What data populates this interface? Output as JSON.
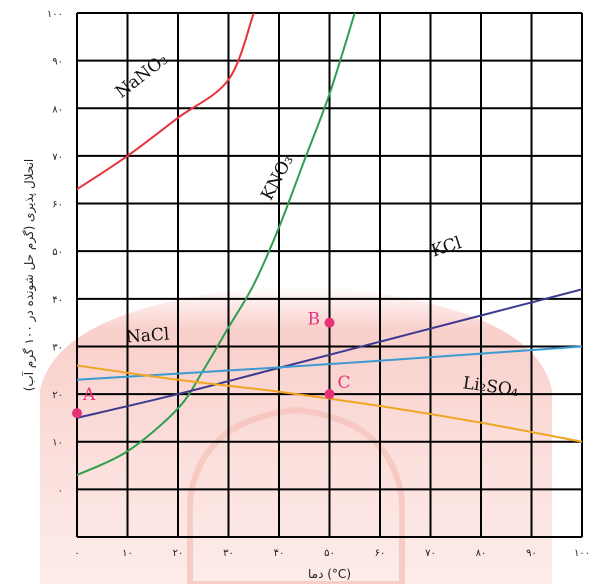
{
  "chart_data": {
    "type": "line",
    "xlabel": "دما (°C)",
    "ylabel": "انحلال پذیری (گرم حل شونده در ۱۰۰ گرم آب)",
    "xlim": [
      0,
      100
    ],
    "ylim": [
      -10,
      100
    ],
    "grid": true,
    "x_ticks": [
      {
        "value": 0,
        "label": "۰"
      },
      {
        "value": 10,
        "label": "۱۰"
      },
      {
        "value": 20,
        "label": "۲۰"
      },
      {
        "value": 30,
        "label": "۳۰"
      },
      {
        "value": 40,
        "label": "۴۰"
      },
      {
        "value": 50,
        "label": "۵۰"
      },
      {
        "value": 60,
        "label": "۶۰"
      },
      {
        "value": 70,
        "label": "۷۰"
      },
      {
        "value": 80,
        "label": "۸۰"
      },
      {
        "value": 90,
        "label": "۹۰"
      },
      {
        "value": 100,
        "label": "۱۰۰"
      }
    ],
    "y_ticks": [
      {
        "value": 0,
        "label": "۰"
      },
      {
        "value": 10,
        "label": "۱۰"
      },
      {
        "value": 20,
        "label": "۲۰"
      },
      {
        "value": 30,
        "label": "۳۰"
      },
      {
        "value": 40,
        "label": "۴۰"
      },
      {
        "value": 50,
        "label": "۵۰"
      },
      {
        "value": 60,
        "label": "۶۰"
      },
      {
        "value": 70,
        "label": "۷۰"
      },
      {
        "value": 80,
        "label": "۸۰"
      },
      {
        "value": 90,
        "label": "۹۰"
      },
      {
        "value": 100,
        "label": "۱۰۰"
      }
    ],
    "series": [
      {
        "name": "NaNO₃",
        "color": "#e8333a",
        "x": [
          0,
          10,
          20,
          30,
          35
        ],
        "y": [
          63,
          70,
          78,
          86,
          100
        ]
      },
      {
        "name": "KNO₃",
        "color": "#2e9e4f",
        "x": [
          0,
          10,
          20,
          25,
          30,
          35,
          40,
          45,
          50,
          55
        ],
        "y": [
          3,
          8,
          17,
          25,
          34,
          43,
          55,
          69,
          83,
          100
        ]
      },
      {
        "name": "KCl",
        "color": "#3b3a8f",
        "x": [
          0,
          20,
          40,
          60,
          80,
          100
        ],
        "y": [
          15,
          20,
          25.5,
          31,
          36.5,
          42
        ]
      },
      {
        "name": "NaCl",
        "color": "#3b9bd1",
        "x": [
          0,
          20,
          40,
          60,
          80,
          100
        ],
        "y": [
          23,
          24.3,
          25.6,
          27,
          28.5,
          30
        ]
      },
      {
        "name": "Li₂SO₄",
        "color": "#f0a521",
        "x": [
          0,
          20,
          40,
          60,
          80,
          100
        ],
        "y": [
          26,
          23,
          20.5,
          17.5,
          14,
          10
        ]
      }
    ],
    "points": [
      {
        "label": "A",
        "x": 0,
        "y": 16
      },
      {
        "label": "B",
        "x": 50,
        "y": 35
      },
      {
        "label": "C",
        "x": 50,
        "y": 20
      }
    ],
    "colors": {
      "points": "#e8317a",
      "grid": "#000000"
    }
  }
}
